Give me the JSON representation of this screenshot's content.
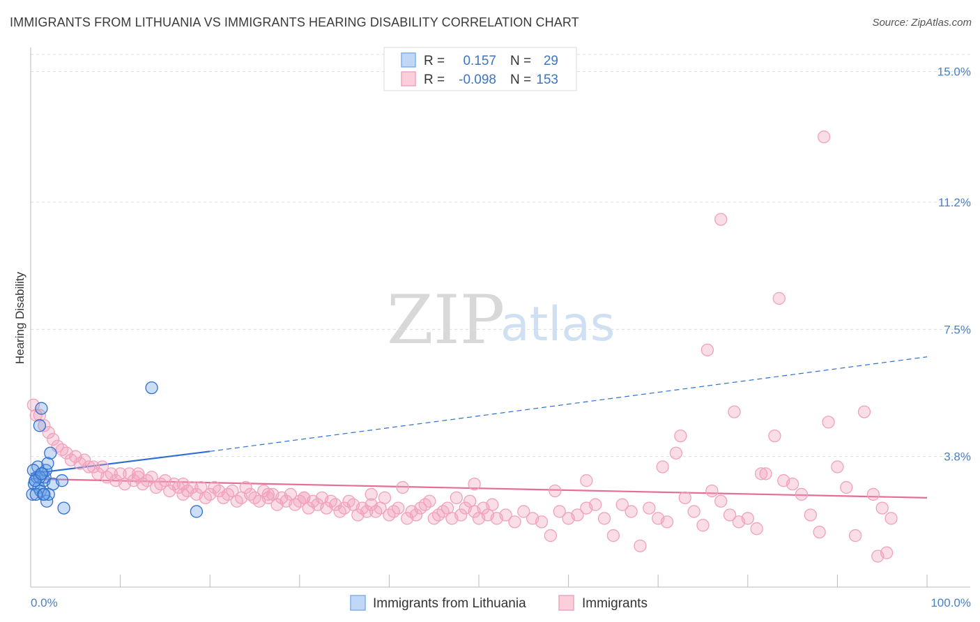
{
  "header": {
    "title": "IMMIGRANTS FROM LITHUANIA VS IMMIGRANTS HEARING DISABILITY CORRELATION CHART",
    "source": "Source: ZipAtlas.com"
  },
  "watermark": {
    "zip": "ZIP",
    "atlas": "atlas"
  },
  "legend": {
    "rows": [
      {
        "r_label": "R =",
        "r_value": "0.157",
        "n_label": "N =",
        "n_value": "29",
        "color": "#7fb0ea"
      },
      {
        "r_label": "R =",
        "r_value": "-0.098",
        "n_label": "N =",
        "n_value": "153",
        "color": "#f3a3bd"
      }
    ]
  },
  "chart_data": {
    "type": "scatter",
    "title": "IMMIGRANTS FROM LITHUANIA VS IMMIGRANTS HEARING DISABILITY CORRELATION CHART",
    "xlabel": "",
    "ylabel": "Hearing Disability",
    "xlim": [
      0,
      100
    ],
    "ylim": [
      0,
      15.5
    ],
    "x_tick_labels": [
      "0.0%",
      "100.0%"
    ],
    "y_ticks": [
      3.8,
      7.5,
      11.2,
      15.0
    ],
    "y_tick_labels": [
      "3.8%",
      "7.5%",
      "11.2%",
      "15.0%"
    ],
    "grid": true,
    "legend_position": "top-center",
    "colors": {
      "blue": "#6aa1e6",
      "blue_line": "#2f6fcf",
      "pink": "#f1a1bb",
      "pink_line": "#e56d98"
    },
    "series": [
      {
        "name": "Immigrants from Lithuania",
        "color": "#6aa1e6",
        "x": [
          0.2,
          0.4,
          0.5,
          0.7,
          0.8,
          0.9,
          1.0,
          1.1,
          1.2,
          1.3,
          1.4,
          1.5,
          1.6,
          1.7,
          1.8,
          1.9,
          2.0,
          2.2,
          2.5,
          3.5,
          3.7,
          0.3,
          0.6,
          1.0,
          13.5,
          18.5,
          0.5,
          1.5,
          1.2
        ],
        "y": [
          2.7,
          3.0,
          3.1,
          3.2,
          3.5,
          2.9,
          4.7,
          2.8,
          5.2,
          3.3,
          2.7,
          3.1,
          3.2,
          3.4,
          2.5,
          3.6,
          2.7,
          3.9,
          3.0,
          3.1,
          2.3,
          3.4,
          2.7,
          3.2,
          5.8,
          2.2,
          3.1,
          2.7,
          3.3
        ]
      },
      {
        "name": "Immigrants",
        "color": "#f1a1bb",
        "x": [
          0.3,
          0.6,
          1.0,
          1.5,
          2.0,
          2.5,
          3.0,
          3.5,
          4.0,
          4.5,
          5.0,
          5.5,
          6.0,
          6.5,
          7.0,
          7.5,
          8.0,
          8.5,
          9.0,
          9.5,
          10.0,
          10.5,
          11.0,
          11.5,
          12.0,
          12.5,
          13.0,
          13.5,
          14.0,
          14.5,
          15.0,
          15.5,
          16.0,
          16.5,
          17.0,
          17.5,
          18.0,
          18.5,
          19.0,
          19.5,
          20.0,
          20.5,
          21.0,
          21.5,
          22.0,
          22.5,
          23.0,
          23.5,
          24.0,
          24.5,
          25.0,
          25.5,
          26.0,
          26.5,
          27.0,
          27.5,
          28.0,
          28.5,
          29.0,
          29.5,
          30.0,
          30.5,
          31.0,
          31.5,
          32.0,
          32.5,
          33.0,
          33.5,
          34.0,
          34.5,
          35.0,
          35.5,
          36.0,
          36.5,
          37.0,
          37.5,
          38.0,
          38.5,
          39.0,
          39.5,
          40.0,
          40.5,
          41.0,
          41.5,
          42.0,
          42.5,
          43.0,
          43.5,
          44.0,
          44.5,
          45.0,
          45.5,
          46.0,
          46.5,
          47.0,
          47.5,
          48.0,
          48.5,
          49.0,
          49.5,
          50.0,
          50.5,
          51.0,
          51.5,
          52.0,
          53.0,
          54.0,
          55.0,
          56.0,
          57.0,
          58.0,
          59.0,
          60.0,
          61.0,
          62.0,
          63.0,
          64.0,
          65.0,
          66.0,
          67.0,
          68.0,
          69.0,
          70.0,
          71.0,
          72.0,
          73.0,
          74.0,
          75.0,
          76.0,
          77.0,
          78.0,
          79.0,
          80.0,
          81.0,
          82.0,
          83.0,
          84.0,
          85.0,
          86.0,
          87.0,
          88.0,
          89.0,
          90.0,
          91.0,
          92.0,
          93.0,
          94.0,
          95.0,
          96.0
        ],
        "y": [
          5.3,
          5.0,
          5.0,
          4.7,
          4.5,
          4.3,
          4.1,
          4.0,
          3.9,
          3.7,
          3.8,
          3.6,
          3.7,
          3.5,
          3.5,
          3.3,
          3.5,
          3.2,
          3.3,
          3.1,
          3.3,
          3.0,
          3.3,
          3.1,
          3.2,
          3.0,
          3.1,
          3.2,
          2.9,
          3.0,
          3.1,
          2.8,
          3.0,
          2.9,
          3.0,
          2.8,
          2.9,
          2.7,
          2.9,
          2.6,
          2.7,
          2.9,
          2.8,
          2.6,
          2.7,
          2.8,
          2.5,
          2.6,
          2.9,
          2.7,
          2.6,
          2.5,
          2.8,
          2.6,
          2.7,
          2.4,
          2.6,
          2.5,
          2.7,
          2.4,
          2.5,
          2.6,
          2.3,
          2.5,
          2.4,
          2.6,
          2.3,
          2.5,
          2.4,
          2.2,
          2.3,
          2.5,
          2.4,
          2.1,
          2.3,
          2.2,
          2.4,
          2.2,
          2.3,
          2.6,
          2.1,
          2.2,
          2.3,
          2.9,
          2.0,
          2.2,
          2.1,
          2.3,
          2.4,
          2.5,
          2.0,
          2.1,
          2.2,
          2.3,
          2.0,
          2.6,
          2.1,
          2.3,
          2.5,
          2.2,
          2.0,
          2.3,
          2.1,
          2.4,
          2.0,
          2.1,
          1.9,
          2.2,
          2.0,
          1.9,
          1.5,
          2.2,
          2.0,
          2.1,
          2.3,
          2.4,
          2.0,
          1.5,
          2.4,
          2.2,
          1.2,
          2.3,
          2.0,
          1.9,
          3.9,
          2.6,
          2.2,
          1.8,
          2.8,
          2.5,
          2.1,
          1.9,
          2.0,
          1.7,
          3.3,
          4.4,
          3.1,
          3.0,
          2.7,
          2.1,
          1.6,
          4.8,
          3.5,
          2.9,
          1.5,
          5.1,
          2.7,
          2.3,
          2.0
        ]
      }
    ],
    "extra_points_immigrants": {
      "x": [
        88.5,
        77.0,
        83.5,
        75.5,
        78.5,
        72.5,
        70.5,
        81.5,
        94.5,
        95.5,
        62.0,
        58.5,
        49.5,
        38.0,
        30.5,
        26.5,
        12.0,
        17.0
      ],
      "y": [
        13.1,
        10.7,
        8.4,
        6.9,
        5.1,
        4.4,
        3.5,
        3.3,
        0.9,
        1.0,
        3.1,
        2.8,
        3.0,
        2.7,
        2.6,
        2.7,
        3.3,
        2.7
      ]
    },
    "trend_lines": [
      {
        "series": "Immigrants from Lithuania",
        "x_solid": [
          0,
          20
        ],
        "y_solid": [
          3.3,
          3.95
        ],
        "x_dashed": [
          20,
          100
        ],
        "y_dashed": [
          3.95,
          6.7
        ]
      },
      {
        "series": "Immigrants",
        "x": [
          0,
          100
        ],
        "y": [
          3.15,
          2.6
        ]
      }
    ]
  }
}
